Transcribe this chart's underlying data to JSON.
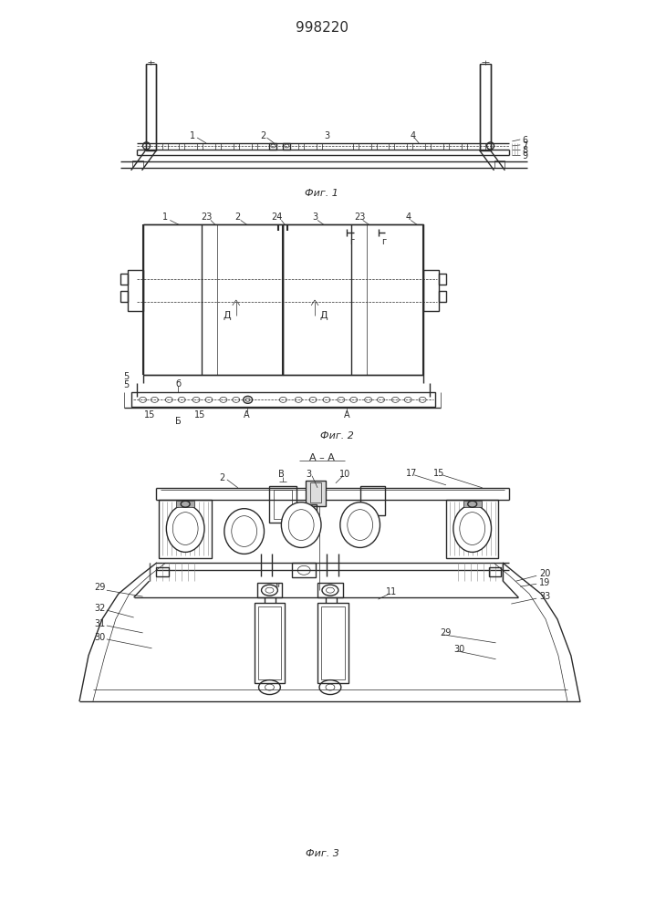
{
  "title": "998220",
  "bg_color": "#ffffff",
  "line_color": "#2a2a2a",
  "fig_labels": [
    "Фиг. 1",
    "Фиг. 2",
    "Фиг. 3"
  ]
}
